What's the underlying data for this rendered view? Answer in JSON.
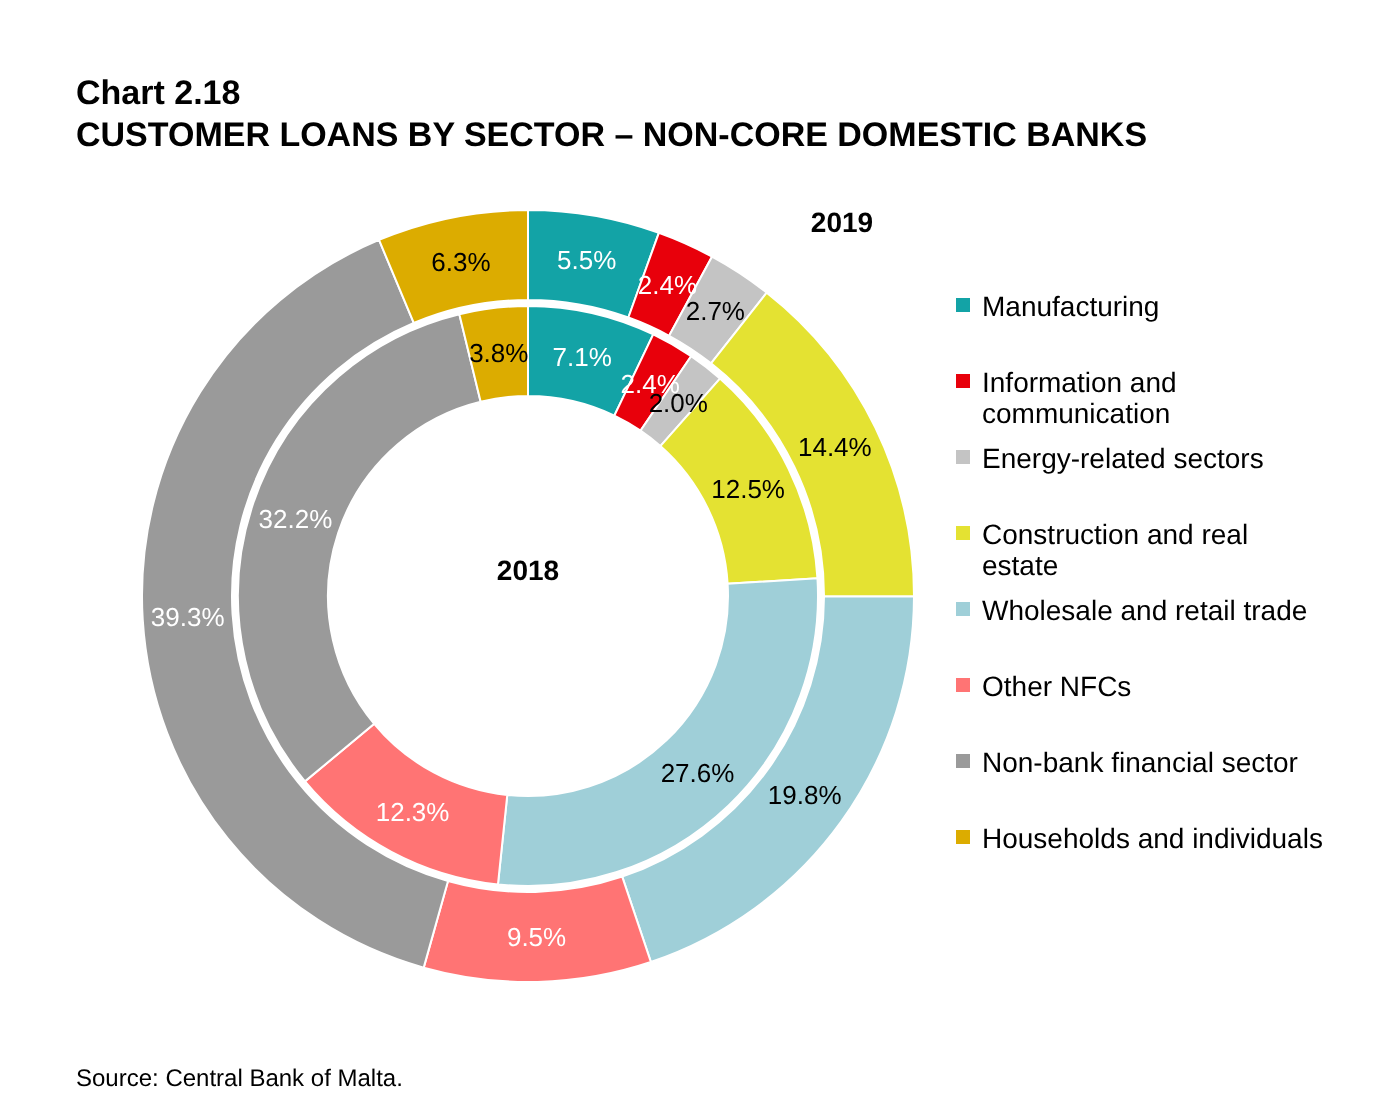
{
  "chart_data": {
    "type": "donut",
    "title": "Chart 2.18",
    "subtitle": "CUSTOMER LOANS BY SECTOR – NON-CORE DOMESTIC BANKS",
    "categories": [
      "Manufacturing",
      "Information and communication",
      "Energy-related sectors",
      "Construction and real estate",
      "Wholesale and retail trade",
      "Other NFCs",
      "Non-bank financial sector",
      "Households and individuals"
    ],
    "colors": [
      "#13a3a6",
      "#e8000b",
      "#c4c4c4",
      "#e4e232",
      "#9fcfd8",
      "#ff7474",
      "#9a9a9a",
      "#dcac00"
    ],
    "series": [
      {
        "name": "2018",
        "values": [
          7.1,
          2.4,
          2.0,
          12.5,
          27.6,
          12.3,
          32.2,
          3.8
        ],
        "value_labels": [
          "7.1%",
          "2.4%",
          "2.0%",
          "12.5%",
          "27.6%",
          "12.3%",
          "32.2%",
          "3.8%"
        ]
      },
      {
        "name": "2019",
        "values": [
          5.5,
          2.4,
          2.7,
          14.4,
          19.8,
          9.5,
          39.3,
          6.3
        ],
        "value_labels": [
          "5.5%",
          "2.4%",
          "2.7%",
          "14.4%",
          "19.8%",
          "9.5%",
          "39.3%",
          "6.3%"
        ]
      }
    ],
    "legend": "right",
    "annotations": [
      "Source: Central Bank of Malta."
    ]
  }
}
